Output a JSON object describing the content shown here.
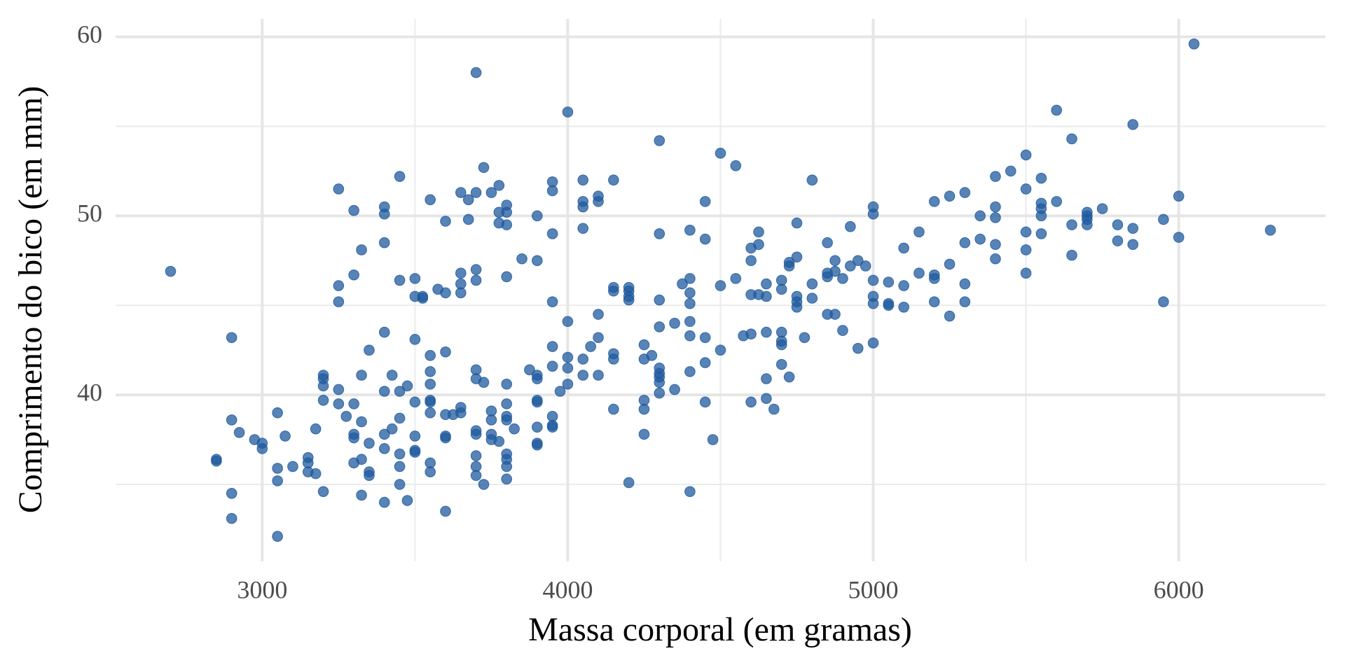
{
  "chart_data": {
    "type": "scatter",
    "x_label": "Massa corporal (em gramas)",
    "y_label": "Comprimento do bico (em mm)",
    "color": "#1f5a9e",
    "grid": true,
    "xlim": [
      2520,
      6480
    ],
    "ylim": [
      30.7,
      61.0
    ],
    "xticks": [
      3000,
      4000,
      5000,
      6000
    ],
    "yticks": [
      40,
      50,
      60
    ],
    "xminor": [
      3500,
      4500,
      5500
    ],
    "yminor": [
      35,
      45,
      55
    ],
    "x": [
      2700,
      2850,
      2850,
      2900,
      2900,
      2900,
      2900,
      2925,
      2975,
      3000,
      3000,
      3050,
      3050,
      3050,
      3050,
      3075,
      3100,
      3150,
      3150,
      3150,
      3175,
      3175,
      3200,
      3200,
      3200,
      3200,
      3200,
      3250,
      3250,
      3250,
      3250,
      3250,
      3275,
      3300,
      3300,
      3300,
      3300,
      3300,
      3300,
      3325,
      3325,
      3325,
      3325,
      3325,
      3350,
      3350,
      3350,
      3350,
      3400,
      3400,
      3400,
      3400,
      3400,
      3400,
      3400,
      3400,
      3425,
      3425,
      3450,
      3450,
      3450,
      3450,
      3450,
      3450,
      3450,
      3475,
      3475,
      3500,
      3500,
      3500,
      3500,
      3500,
      3500,
      3500,
      3525,
      3525,
      3550,
      3550,
      3550,
      3550,
      3550,
      3550,
      3550,
      3550,
      3550,
      3575,
      3600,
      3600,
      3600,
      3600,
      3600,
      3600,
      3600,
      3625,
      3650,
      3650,
      3650,
      3650,
      3650,
      3650,
      3675,
      3675,
      3700,
      3700,
      3700,
      3700,
      3700,
      3700,
      3700,
      3700,
      3700,
      3700,
      3700,
      3725,
      3725,
      3725,
      3750,
      3750,
      3750,
      3750,
      3750,
      3775,
      3775,
      3775,
      3775,
      3800,
      3800,
      3800,
      3800,
      3800,
      3800,
      3800,
      3800,
      3800,
      3800,
      3800,
      3800,
      3825,
      3850,
      3875,
      3900,
      3900,
      3900,
      3900,
      3900,
      3900,
      3900,
      3900,
      3900,
      3950,
      3950,
      3950,
      3950,
      3950,
      3950,
      3950,
      3950,
      3950,
      3975,
      4000,
      4000,
      4000,
      4000,
      4000,
      4050,
      4050,
      4050,
      4050,
      4050,
      4050,
      4075,
      4100,
      4100,
      4100,
      4100,
      4100,
      4150,
      4150,
      4150,
      4150,
      4150,
      4150,
      4200,
      4200,
      4200,
      4200,
      4200,
      4250,
      4250,
      4250,
      4250,
      4250,
      4275,
      4300,
      4300,
      4300,
      4300,
      4300,
      4300,
      4300,
      4300,
      4300,
      4350,
      4350,
      4375,
      4400,
      4400,
      4400,
      4400,
      4400,
      4400,
      4400,
      4400,
      4450,
      4450,
      4450,
      4450,
      4450,
      4475,
      4500,
      4500,
      4500,
      4550,
      4550,
      4575,
      4600,
      4600,
      4600,
      4600,
      4600,
      4625,
      4625,
      4625,
      4650,
      4650,
      4650,
      4650,
      4650,
      4675,
      4700,
      4700,
      4700,
      4700,
      4700,
      4700,
      4725,
      4725,
      4725,
      4750,
      4750,
      4750,
      4750,
      4750,
      4775,
      4800,
      4800,
      4800,
      4850,
      4850,
      4850,
      4850,
      4875,
      4875,
      4875,
      4900,
      4900,
      4925,
      4925,
      4950,
      4950,
      4975,
      5000,
      5000,
      5000,
      5000,
      5000,
      5000,
      5050,
      5050,
      5050,
      5100,
      5100,
      5100,
      5150,
      5150,
      5200,
      5200,
      5200,
      5200,
      5250,
      5250,
      5250,
      5300,
      5300,
      5300,
      5300,
      5350,
      5350,
      5400,
      5400,
      5400,
      5400,
      5400,
      5450,
      5500,
      5500,
      5500,
      5500,
      5500,
      5550,
      5550,
      5550,
      5550,
      5550,
      5600,
      5600,
      5650,
      5650,
      5650,
      5700,
      5700,
      5700,
      5700,
      5750,
      5800,
      5800,
      5850,
      5850,
      5850,
      5950,
      5950,
      6000,
      6000,
      6050,
      6300
    ],
    "y": [
      46.9,
      36.4,
      36.3,
      43.2,
      38.6,
      34.5,
      33.1,
      37.9,
      37.5,
      37.3,
      37.0,
      39.0,
      35.9,
      35.2,
      32.1,
      37.7,
      36.0,
      36.5,
      36.2,
      35.7,
      38.1,
      35.6,
      41.1,
      40.9,
      40.5,
      39.7,
      34.6,
      51.5,
      46.1,
      45.2,
      40.3,
      39.5,
      38.8,
      50.3,
      46.7,
      39.5,
      37.8,
      37.6,
      36.2,
      48.1,
      41.1,
      38.5,
      36.4,
      34.4,
      42.5,
      37.3,
      35.7,
      35.5,
      50.5,
      50.1,
      48.5,
      43.5,
      40.2,
      37.8,
      37.0,
      34.0,
      41.1,
      38.1,
      52.2,
      46.4,
      40.2,
      38.7,
      36.7,
      36.0,
      35.0,
      40.5,
      34.1,
      46.5,
      45.5,
      43.1,
      39.6,
      37.7,
      36.9,
      36.8,
      45.5,
      45.4,
      50.9,
      42.2,
      41.3,
      40.6,
      39.7,
      39.6,
      39.0,
      36.2,
      35.7,
      45.9,
      49.7,
      45.7,
      42.4,
      38.9,
      37.7,
      37.6,
      33.5,
      38.9,
      51.3,
      46.8,
      46.2,
      45.7,
      39.3,
      39.0,
      49.8,
      50.9,
      58.0,
      51.3,
      47.0,
      46.4,
      41.4,
      40.9,
      38.0,
      37.8,
      36.6,
      36.0,
      35.5,
      52.7,
      40.7,
      35.0,
      51.3,
      39.1,
      38.6,
      37.8,
      37.5,
      51.7,
      50.2,
      49.6,
      37.4,
      50.6,
      50.2,
      49.5,
      46.6,
      40.6,
      39.5,
      38.8,
      38.6,
      36.7,
      36.4,
      36.0,
      35.3,
      38.1,
      47.6,
      41.4,
      50.0,
      47.5,
      41.1,
      40.9,
      39.7,
      39.6,
      38.2,
      37.2,
      37.3,
      51.9,
      51.4,
      49.0,
      45.2,
      42.7,
      41.6,
      38.8,
      38.3,
      38.2,
      40.2,
      55.8,
      44.1,
      42.1,
      41.5,
      40.6,
      52.0,
      50.8,
      50.5,
      49.3,
      42.0,
      41.1,
      42.7,
      51.1,
      50.8,
      44.5,
      43.2,
      41.1,
      52.0,
      46.0,
      45.8,
      42.3,
      42.0,
      39.2,
      46.0,
      45.8,
      45.5,
      45.3,
      35.1,
      42.8,
      42.0,
      39.7,
      39.2,
      37.8,
      42.2,
      54.2,
      49.0,
      45.3,
      43.8,
      41.5,
      41.2,
      41.0,
      40.7,
      40.1,
      44.0,
      40.3,
      46.2,
      49.2,
      46.5,
      45.7,
      45.1,
      44.1,
      43.3,
      41.3,
      34.6,
      50.8,
      48.7,
      43.2,
      41.8,
      39.6,
      37.5,
      53.5,
      46.1,
      42.5,
      52.8,
      46.5,
      43.3,
      48.2,
      47.5,
      45.6,
      43.4,
      39.6,
      49.1,
      48.4,
      45.6,
      46.2,
      45.5,
      43.5,
      40.9,
      39.8,
      39.2,
      46.4,
      45.9,
      43.5,
      43.0,
      42.8,
      41.7,
      47.4,
      47.2,
      41.0,
      49.6,
      47.7,
      45.5,
      45.2,
      44.9,
      43.2,
      52.0,
      46.2,
      45.4,
      48.5,
      46.8,
      46.6,
      44.5,
      47.5,
      46.9,
      44.5,
      46.5,
      43.6,
      49.4,
      47.2,
      47.5,
      42.6,
      47.2,
      50.5,
      50.1,
      46.4,
      45.5,
      45.1,
      42.9,
      46.3,
      45.1,
      45.0,
      48.2,
      46.1,
      44.9,
      49.1,
      46.8,
      50.8,
      46.7,
      46.5,
      45.2,
      51.1,
      47.3,
      44.4,
      51.3,
      48.5,
      46.2,
      45.2,
      50.0,
      48.7,
      52.2,
      50.5,
      49.9,
      48.4,
      47.6,
      52.5,
      53.4,
      51.5,
      49.1,
      48.1,
      46.8,
      52.1,
      50.7,
      50.4,
      50.0,
      49.0,
      55.9,
      50.8,
      54.3,
      49.5,
      47.8,
      50.2,
      50.0,
      49.8,
      49.5,
      50.4,
      49.5,
      48.6,
      55.1,
      49.3,
      48.4,
      49.8,
      45.2,
      51.1,
      48.8,
      59.6,
      49.2
    ]
  }
}
